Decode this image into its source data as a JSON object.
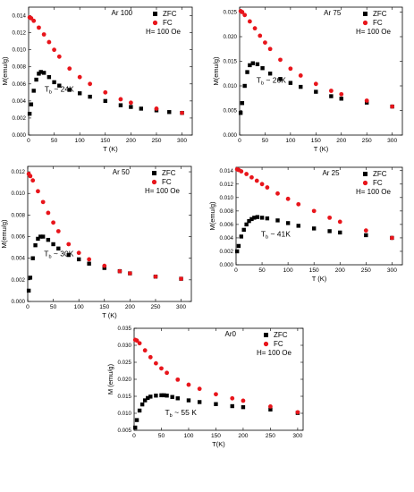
{
  "colors": {
    "zfc": "#000000",
    "fc": "#e8151b",
    "axis": "#000000",
    "background": "#ffffff"
  },
  "chart_data": [
    {
      "type": "scatter",
      "title": "Ar 100",
      "xlabel": "T (K)",
      "ylabel": "M(emu/g)",
      "xlim": [
        0,
        320
      ],
      "ylim": [
        0,
        0.015
      ],
      "xticks": [
        0,
        50,
        100,
        150,
        200,
        250,
        300
      ],
      "yticks": [
        0.0,
        0.002,
        0.004,
        0.006,
        0.008,
        0.01,
        0.012,
        0.014
      ],
      "ytick_decimals": 3,
      "legend": {
        "entries": [
          "ZFC",
          "FC"
        ],
        "field": "H= 100 Oe",
        "placement": "top-right"
      },
      "annotation": {
        "main": "T",
        "subscript": "b",
        "rest": " ~ 24K"
      },
      "grid": false,
      "series": [
        {
          "name": "ZFC",
          "shape": "square",
          "peak_T": 24,
          "x": [
            2,
            5,
            10,
            15,
            20,
            24,
            30,
            40,
            50,
            60,
            80,
            100,
            120,
            150,
            180,
            200,
            220,
            250,
            275,
            300
          ],
          "y": [
            0.0025,
            0.0036,
            0.0052,
            0.0065,
            0.0072,
            0.0074,
            0.0073,
            0.0068,
            0.0062,
            0.0058,
            0.0053,
            0.0049,
            0.0045,
            0.004,
            0.0035,
            0.0033,
            0.0031,
            0.0029,
            0.0027,
            0.0026
          ]
        },
        {
          "name": "FC",
          "shape": "circle",
          "x": [
            2,
            5,
            10,
            20,
            30,
            40,
            50,
            60,
            80,
            100,
            120,
            150,
            180,
            200,
            250,
            300
          ],
          "y": [
            0.0138,
            0.0137,
            0.0134,
            0.0126,
            0.0118,
            0.0109,
            0.01,
            0.0092,
            0.0078,
            0.0068,
            0.006,
            0.005,
            0.0042,
            0.0038,
            0.0031,
            0.0026
          ]
        }
      ]
    },
    {
      "type": "scatter",
      "title": "Ar 75",
      "xlabel": "T (K)",
      "ylabel": "M(emu/g)",
      "xlim": [
        0,
        320
      ],
      "ylim": [
        0,
        0.026
      ],
      "xticks": [
        0,
        50,
        100,
        150,
        200,
        250,
        300
      ],
      "yticks": [
        0.0,
        0.005,
        0.01,
        0.015,
        0.02,
        0.025
      ],
      "ytick_decimals": 3,
      "legend": {
        "entries": [
          "ZFC",
          "FC"
        ],
        "field": "H= 100 Oe",
        "placement": "top-right"
      },
      "annotation": {
        "main": "T",
        "subscript": "b",
        "rest": " ~ 26K"
      },
      "grid": false,
      "series": [
        {
          "name": "ZFC",
          "shape": "square",
          "peak_T": 26,
          "x": [
            2,
            5,
            10,
            15,
            20,
            26,
            35,
            45,
            60,
            80,
            100,
            120,
            150,
            180,
            200,
            250,
            300
          ],
          "y": [
            0.0045,
            0.0065,
            0.01,
            0.0128,
            0.0142,
            0.0146,
            0.0144,
            0.0136,
            0.0125,
            0.0114,
            0.0106,
            0.0098,
            0.0088,
            0.0079,
            0.0074,
            0.0066,
            0.0058
          ]
        },
        {
          "name": "FC",
          "shape": "circle",
          "x": [
            2,
            5,
            10,
            20,
            30,
            40,
            50,
            60,
            80,
            100,
            120,
            150,
            180,
            200,
            250,
            300
          ],
          "y": [
            0.0252,
            0.025,
            0.0244,
            0.0231,
            0.0217,
            0.0202,
            0.0188,
            0.0175,
            0.0153,
            0.0135,
            0.0121,
            0.0104,
            0.009,
            0.0083,
            0.007,
            0.0058
          ]
        }
      ]
    },
    {
      "type": "scatter",
      "title": "Ar 50",
      "xlabel": "T (K)",
      "ylabel": "M(emu/g)",
      "xlim": [
        0,
        320
      ],
      "ylim": [
        0,
        0.0125
      ],
      "xticks": [
        0,
        50,
        100,
        150,
        200,
        250,
        300
      ],
      "yticks": [
        0.0,
        0.002,
        0.004,
        0.006,
        0.008,
        0.01,
        0.012
      ],
      "ytick_decimals": 3,
      "legend": {
        "entries": [
          "ZFC",
          "FC"
        ],
        "field": "H= 100 Oe",
        "placement": "top-right"
      },
      "annotation": {
        "main": "T",
        "subscript": "b",
        "rest": " ~ 30K"
      },
      "grid": false,
      "series": [
        {
          "name": "ZFC",
          "shape": "square",
          "peak_T": 30,
          "x": [
            2,
            5,
            10,
            15,
            20,
            25,
            30,
            40,
            50,
            60,
            80,
            100,
            120,
            150,
            180,
            200,
            250,
            300
          ],
          "y": [
            0.001,
            0.0022,
            0.004,
            0.0052,
            0.0058,
            0.006,
            0.006,
            0.0057,
            0.0053,
            0.0049,
            0.0043,
            0.0039,
            0.0035,
            0.0031,
            0.0028,
            0.0026,
            0.0023,
            0.0021
          ]
        },
        {
          "name": "FC",
          "shape": "circle",
          "x": [
            2,
            5,
            10,
            20,
            30,
            40,
            50,
            60,
            80,
            100,
            120,
            150,
            180,
            200,
            250,
            300
          ],
          "y": [
            0.0118,
            0.0116,
            0.0112,
            0.0102,
            0.0092,
            0.0082,
            0.0073,
            0.0065,
            0.0053,
            0.0045,
            0.0039,
            0.0033,
            0.0028,
            0.0026,
            0.0023,
            0.0021
          ]
        }
      ]
    },
    {
      "type": "scatter",
      "title": "Ar 25",
      "xlabel": "T (K)",
      "ylabel": "M(emu/g)",
      "xlim": [
        0,
        320
      ],
      "ylim": [
        0,
        0.0145
      ],
      "xticks": [
        0,
        50,
        100,
        150,
        200,
        250,
        300
      ],
      "yticks": [
        0.0,
        0.002,
        0.004,
        0.006,
        0.008,
        0.01,
        0.012,
        0.014
      ],
      "ytick_decimals": 3,
      "legend": {
        "entries": [
          "ZFC",
          "FC"
        ],
        "field": "H= 100 Oe",
        "placement": "top-right"
      },
      "annotation": {
        "main": "T",
        "subscript": "b",
        "rest": " ~ 41K"
      },
      "grid": false,
      "series": [
        {
          "name": "ZFC",
          "shape": "square",
          "peak_T": 41,
          "x": [
            2,
            5,
            10,
            15,
            20,
            25,
            30,
            35,
            41,
            50,
            60,
            80,
            100,
            120,
            150,
            180,
            200,
            250,
            300
          ],
          "y": [
            0.002,
            0.0028,
            0.0042,
            0.0052,
            0.006,
            0.0065,
            0.0068,
            0.007,
            0.0071,
            0.007,
            0.0069,
            0.0066,
            0.0062,
            0.0058,
            0.0054,
            0.005,
            0.0048,
            0.0044,
            0.004
          ]
        },
        {
          "name": "FC",
          "shape": "circle",
          "x": [
            2,
            5,
            10,
            20,
            30,
            40,
            50,
            60,
            80,
            100,
            120,
            150,
            180,
            200,
            250,
            300
          ],
          "y": [
            0.0142,
            0.0141,
            0.0139,
            0.0135,
            0.013,
            0.0125,
            0.012,
            0.0115,
            0.0106,
            0.0098,
            0.009,
            0.008,
            0.007,
            0.0064,
            0.0051,
            0.004
          ]
        }
      ]
    },
    {
      "type": "scatter",
      "title": "Ar0",
      "xlabel": "T(K)",
      "ylabel": "M (emu/g)",
      "xlim": [
        0,
        310
      ],
      "ylim": [
        0.005,
        0.035
      ],
      "xticks": [
        0,
        50,
        100,
        150,
        200,
        250,
        300
      ],
      "yticks": [
        0.005,
        0.01,
        0.015,
        0.02,
        0.025,
        0.03,
        0.035
      ],
      "ytick_decimals": 3,
      "legend": {
        "entries": [
          "ZFC",
          "FC"
        ],
        "field": "H= 100 Oe",
        "placement": "top-right"
      },
      "annotation": {
        "main": "T",
        "subscript": "b",
        "rest": " ~ 55 K"
      },
      "grid": false,
      "series": [
        {
          "name": "ZFC",
          "shape": "square",
          "peak_T": 55,
          "x": [
            2,
            5,
            10,
            15,
            20,
            25,
            30,
            40,
            50,
            55,
            60,
            70,
            80,
            100,
            120,
            150,
            180,
            200,
            250,
            300
          ],
          "y": [
            0.0058,
            0.008,
            0.0108,
            0.0126,
            0.0138,
            0.0145,
            0.0149,
            0.0152,
            0.0153,
            0.0153,
            0.0152,
            0.0148,
            0.0144,
            0.0138,
            0.0133,
            0.0127,
            0.0121,
            0.0118,
            0.0111,
            0.0101
          ]
        },
        {
          "name": "FC",
          "shape": "circle",
          "x": [
            2,
            5,
            10,
            20,
            30,
            40,
            50,
            60,
            80,
            100,
            120,
            150,
            180,
            200,
            250,
            300
          ],
          "y": [
            0.0316,
            0.0314,
            0.0306,
            0.0285,
            0.0265,
            0.0247,
            0.0232,
            0.0219,
            0.0199,
            0.0184,
            0.0172,
            0.0156,
            0.0144,
            0.0137,
            0.012,
            0.0103
          ]
        }
      ]
    }
  ]
}
